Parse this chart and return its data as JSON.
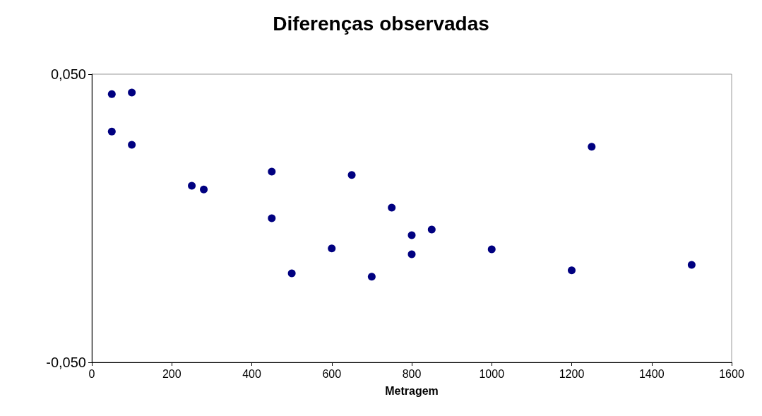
{
  "chart_data": {
    "type": "scatter",
    "title": "Diferenças observadas",
    "xlabel": "Metragem",
    "x": [
      50,
      100,
      50,
      100,
      250,
      280,
      450,
      450,
      500,
      600,
      650,
      700,
      750,
      800,
      800,
      850,
      1000,
      1200,
      1250,
      1500
    ],
    "values": [
      0.0431,
      0.0436,
      0.0301,
      0.0255,
      0.0113,
      0.01,
      0.0162,
      0.0,
      -0.0191,
      -0.0105,
      0.015,
      -0.0203,
      0.0037,
      -0.0059,
      -0.0125,
      -0.0039,
      -0.0108,
      -0.0181,
      0.0248,
      -0.0162
    ],
    "color": "#000080",
    "marker": "circle",
    "xlim": [
      0,
      1600
    ],
    "xticks": [
      0,
      200,
      400,
      600,
      800,
      1000,
      1200,
      1400,
      1600
    ],
    "ylim": [
      -0.05,
      0.05
    ],
    "yticks": [
      {
        "value": -0.05,
        "label": "-0,050"
      },
      {
        "value": 0.05,
        "label": "0,050"
      }
    ],
    "grid": false
  }
}
